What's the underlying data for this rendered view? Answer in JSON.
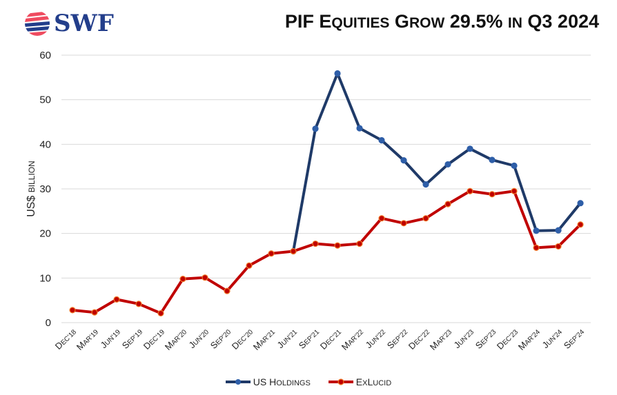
{
  "header": {
    "logo_text": "SWF",
    "title": "PIF Equities Grow 29.5% in Q3 2024"
  },
  "colors": {
    "us_holdings": "#1f3a68",
    "us_holdings_marker": "#2e5ea8",
    "exlucid": "#c00000",
    "exlucid_marker": "#f07b2a",
    "grid": "#d9d9d9",
    "logo_red": "#ef4b5f",
    "logo_blue": "#233e8b"
  },
  "chart_data": {
    "type": "line",
    "title": "PIF Equities Grow 29.5% in Q3 2024",
    "xlabel": "",
    "ylabel": "US$ billion",
    "ylim": [
      0,
      60
    ],
    "yticks": [
      0,
      10,
      20,
      30,
      40,
      50,
      60
    ],
    "grid": true,
    "legend_position": "bottom",
    "categories": [
      "Dec'18",
      "Mar'19",
      "Jun'19",
      "Sep'19",
      "Dec'19",
      "Mar'20",
      "Jun'20",
      "Sep'20",
      "Dec'20",
      "Mar'21",
      "Jun'21",
      "Sep'21",
      "Dec'21",
      "Mar'22",
      "Jun'22",
      "Sep'22",
      "Dec'22",
      "Mar'23",
      "Jun'23",
      "Sep'23",
      "Dec'23",
      "Mar'24",
      "Jun'24",
      "Sep'24"
    ],
    "series": [
      {
        "name": "US Holdings",
        "values": [
          null,
          null,
          null,
          null,
          null,
          null,
          null,
          null,
          null,
          null,
          16.0,
          43.5,
          55.9,
          43.6,
          40.9,
          36.4,
          31.0,
          35.5,
          39.0,
          36.5,
          35.2,
          20.6,
          20.7,
          26.8
        ]
      },
      {
        "name": "ExLucid",
        "values": [
          2.8,
          2.3,
          5.2,
          4.2,
          2.1,
          9.8,
          10.1,
          7.1,
          12.8,
          15.5,
          16.0,
          17.7,
          17.3,
          17.7,
          23.4,
          22.3,
          23.4,
          26.6,
          29.5,
          28.8,
          29.5,
          16.8,
          17.1,
          22.0
        ]
      }
    ]
  },
  "legend": {
    "items": [
      {
        "label": "US Holdings"
      },
      {
        "label": "ExLucid"
      }
    ]
  }
}
